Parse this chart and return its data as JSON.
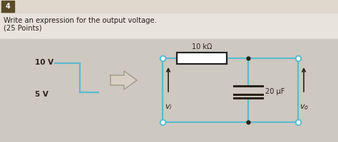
{
  "bg_top_color": "#e8e3db",
  "bg_bottom_color": "#d4cfc7",
  "header_bar_color": "#e0d8cc",
  "header_num_bg": "#5a4a28",
  "header_text": "4",
  "question_line1": "Write an expression for the output voltage.",
  "question_line2": "(25 Points)",
  "circuit_color": "#5abccc",
  "resistor_label": "10 kΩ",
  "capacitor_label": "20 μF",
  "vi_label": "v_i",
  "vo_label": "v_o",
  "pulse_high": "10 V",
  "pulse_low": "5 V",
  "text_color": "#2a2218",
  "waveform_color": "#5abccc",
  "arrow_fill": "#d8d0c4",
  "arrow_edge": "#a09888"
}
